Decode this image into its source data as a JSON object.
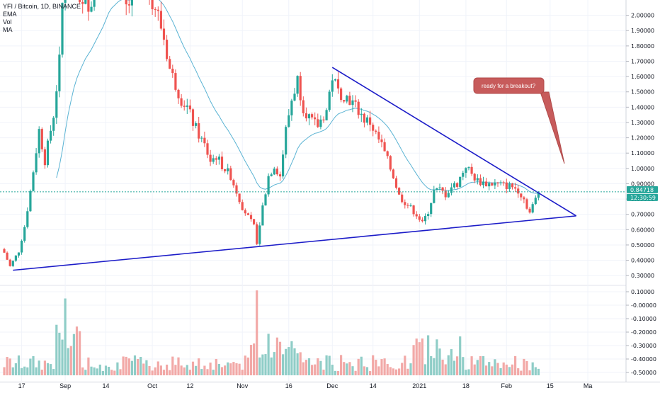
{
  "chart_data": {
    "type": "candlestick",
    "title": "YFI / Bitcoin, 1D, BINANCE",
    "indicators": [
      "EMA",
      "Vol",
      "MA"
    ],
    "price_axis": {
      "ylim": [
        0.25,
        2.1
      ],
      "ticks": [
        "2.00000",
        "1.90000",
        "1.80000",
        "1.70000",
        "1.60000",
        "1.50000",
        "1.40000",
        "1.30000",
        "1.20000",
        "1.10000",
        "1.00000",
        "0.90000",
        "0.80000",
        "0.70000",
        "0.60000",
        "0.50000",
        "0.40000",
        "0.30000"
      ],
      "tick_values": [
        2.0,
        1.9,
        1.8,
        1.7,
        1.6,
        1.5,
        1.4,
        1.3,
        1.2,
        1.1,
        1.0,
        0.9,
        0.8,
        0.7,
        0.6,
        0.5,
        0.4,
        0.3
      ]
    },
    "volume_axis": {
      "ticks": [
        "0.10000",
        "-0.00000",
        "-0.10000",
        "-0.20000",
        "-0.30000",
        "-0.40000",
        "-0.50000"
      ],
      "tick_values": [
        0.1,
        0.0,
        -0.1,
        -0.2,
        -0.3,
        -0.4,
        -0.5
      ]
    },
    "x_axis": {
      "labels": [
        "17",
        "Sep",
        "14",
        "Oct",
        "12",
        "Nov",
        "16",
        "Dec",
        "14",
        "2021",
        "18",
        "Feb",
        "15",
        "Ma"
      ],
      "label_bar_index": [
        6,
        21,
        35,
        51,
        64,
        82,
        98,
        113,
        127,
        143,
        159,
        173,
        188,
        201
      ]
    },
    "last_price": "0.84718",
    "countdown": "12:30:59",
    "last_price_value": 0.84718,
    "annotation": "ready for a breakout?",
    "trendlines": [
      {
        "name": "upper",
        "from": {
          "bar": 113,
          "price": 1.66
        },
        "to": {
          "bar": 197,
          "price": 0.69
        }
      },
      {
        "name": "lower",
        "from": {
          "bar": 3,
          "price": 0.335
        },
        "to": {
          "bar": 197,
          "price": 0.69
        }
      }
    ],
    "anchors": [
      [
        0,
        0.45
      ],
      [
        2,
        0.36
      ],
      [
        5,
        0.46
      ],
      [
        7,
        0.62
      ],
      [
        9,
        0.85
      ],
      [
        12,
        1.25
      ],
      [
        14,
        1.05
      ],
      [
        17,
        1.35
      ],
      [
        19,
        1.7
      ],
      [
        21,
        2.45
      ],
      [
        24,
        2.25
      ],
      [
        27,
        2.05
      ],
      [
        30,
        2.1
      ],
      [
        33,
        2.3
      ],
      [
        36,
        2.4
      ],
      [
        39,
        2.25
      ],
      [
        42,
        2.05
      ],
      [
        46,
        2.15
      ],
      [
        50,
        2.15
      ],
      [
        53,
        2.0
      ],
      [
        55,
        1.85
      ],
      [
        57,
        1.65
      ],
      [
        59,
        1.55
      ],
      [
        61,
        1.45
      ],
      [
        63,
        1.4
      ],
      [
        65,
        1.3
      ],
      [
        67,
        1.22
      ],
      [
        69,
        1.15
      ],
      [
        71,
        1.05
      ],
      [
        73,
        1.08
      ],
      [
        75,
        1.02
      ],
      [
        78,
        0.95
      ],
      [
        80,
        0.85
      ],
      [
        82,
        0.75
      ],
      [
        84,
        0.68
      ],
      [
        86,
        0.62
      ],
      [
        87,
        0.52
      ],
      [
        89,
        0.75
      ],
      [
        91,
        0.95
      ],
      [
        93,
        1.02
      ],
      [
        95,
        0.95
      ],
      [
        97,
        1.25
      ],
      [
        99,
        1.45
      ],
      [
        101,
        1.58
      ],
      [
        103,
        1.4
      ],
      [
        106,
        1.3
      ],
      [
        108,
        1.28
      ],
      [
        111,
        1.38
      ],
      [
        113,
        1.6
      ],
      [
        115,
        1.5
      ],
      [
        117,
        1.48
      ],
      [
        119,
        1.45
      ],
      [
        122,
        1.38
      ],
      [
        124,
        1.32
      ],
      [
        126,
        1.3
      ],
      [
        128,
        1.22
      ],
      [
        130,
        1.15
      ],
      [
        132,
        1.05
      ],
      [
        134,
        0.95
      ],
      [
        136,
        0.82
      ],
      [
        138,
        0.78
      ],
      [
        140,
        0.74
      ],
      [
        142,
        0.7
      ],
      [
        144,
        0.64
      ],
      [
        146,
        0.72
      ],
      [
        148,
        0.85
      ],
      [
        150,
        0.86
      ],
      [
        152,
        0.83
      ],
      [
        154,
        0.88
      ],
      [
        156,
        0.9
      ],
      [
        159,
        1.02
      ],
      [
        161,
        0.96
      ],
      [
        163,
        0.92
      ],
      [
        166,
        0.9
      ],
      [
        169,
        0.9
      ],
      [
        172,
        0.89
      ],
      [
        175,
        0.88
      ],
      [
        177,
        0.86
      ],
      [
        179,
        0.8
      ],
      [
        181,
        0.71
      ],
      [
        183,
        0.8
      ],
      [
        184,
        0.85
      ]
    ],
    "colors": {
      "up": "#26a69a",
      "down": "#ef5350",
      "up_volume": "#8fcdc7",
      "down_volume": "#f2a9a7",
      "trendline": "#1c1cc8",
      "ema": "#5ab3d3",
      "callout": "#c75b5b",
      "price_tag": "#26a69a",
      "price_line": "#26a69a"
    }
  }
}
